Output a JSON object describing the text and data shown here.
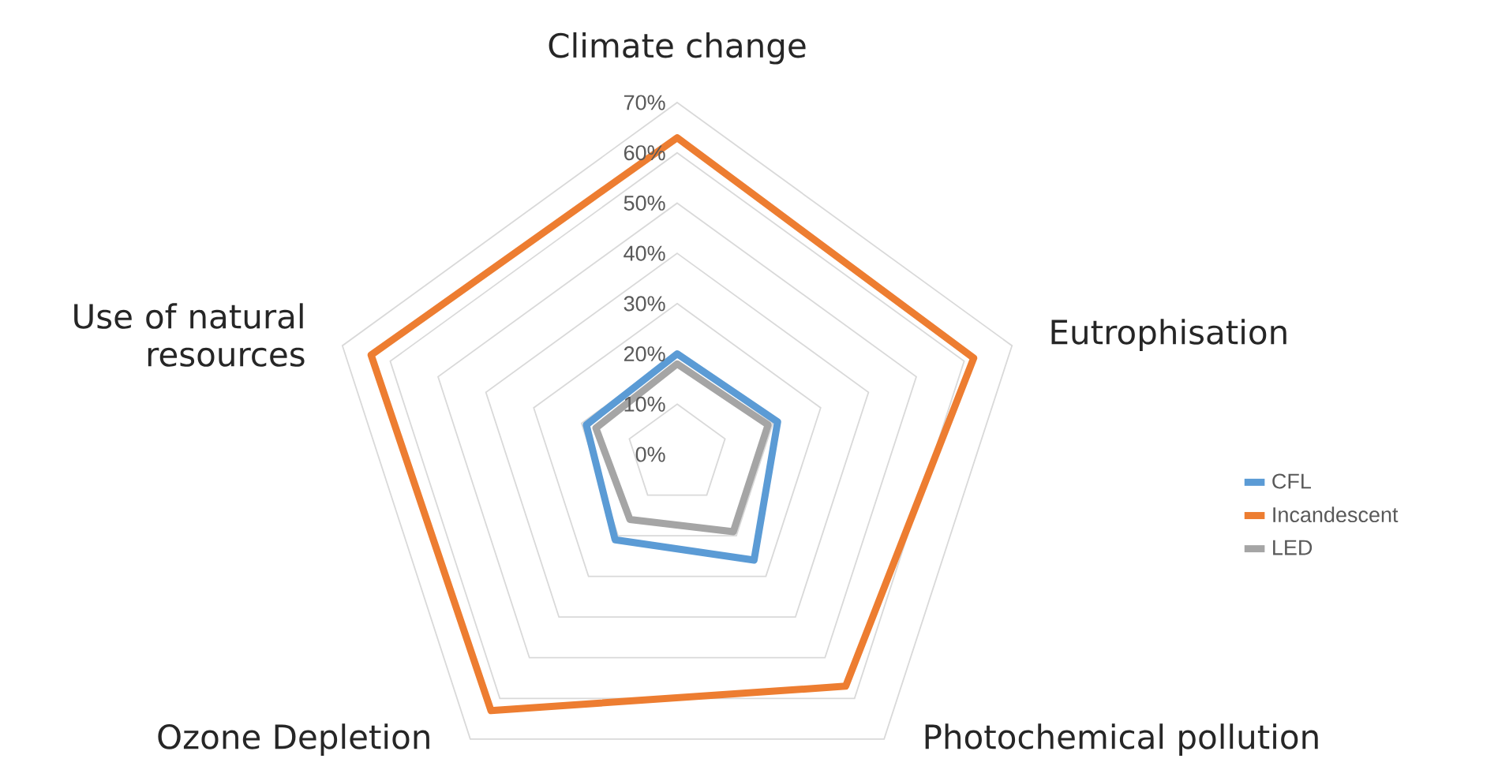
{
  "chart_data": {
    "type": "radar",
    "categories": [
      "Climate change",
      "Eutrophisation",
      "Photochemical pollution",
      "Ozone Depletion",
      "Use of natural resources"
    ],
    "series": [
      {
        "name": "CFL",
        "color": "#5b9bd5",
        "values": [
          20,
          21,
          26,
          21,
          19
        ]
      },
      {
        "name": "Incandescent",
        "color": "#ed7d31",
        "values": [
          63,
          62,
          57,
          63,
          64
        ]
      },
      {
        "name": "LED",
        "color": "#a5a5a5",
        "values": [
          18,
          19,
          19,
          16,
          17
        ]
      }
    ],
    "ylim": [
      0,
      70
    ],
    "yticks": [
      {
        "value": 0,
        "label": "0%"
      },
      {
        "value": 10,
        "label": "10%"
      },
      {
        "value": 20,
        "label": "20%"
      },
      {
        "value": 30,
        "label": "30%"
      },
      {
        "value": 40,
        "label": "40%"
      },
      {
        "value": 50,
        "label": "50%"
      },
      {
        "value": 60,
        "label": "60%"
      },
      {
        "value": 70,
        "label": "70%"
      }
    ],
    "grid": true,
    "legend": "right",
    "line_style": "solid",
    "marker": "none"
  }
}
